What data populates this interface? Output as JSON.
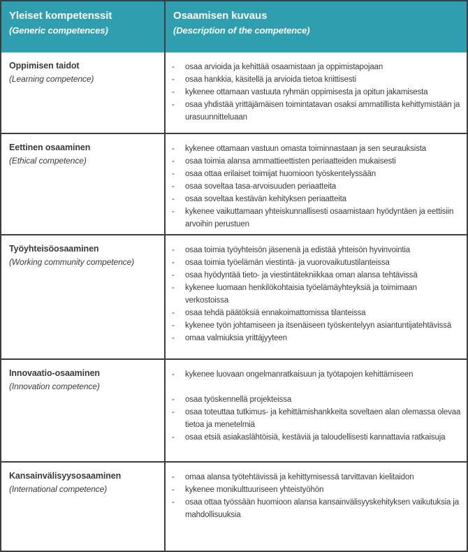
{
  "colors": {
    "header_bg": "#2f9fb0",
    "border": "#3d3d3d",
    "body_text": "#3a3a3a",
    "header_text": "#ffffff"
  },
  "table": {
    "header": {
      "col1_title": "Yleiset kompetenssit",
      "col1_subtitle": "(Generic competences)",
      "col2_title": "Osaamisen kuvaus",
      "col2_subtitle": "(Description of the competence)"
    },
    "rows": [
      {
        "name": "Oppimisen taidot",
        "name_en": "(Learning competence)",
        "items": [
          "osaa arvioida ja kehittää osaamistaan ja oppimistapojaan",
          "osaa hankkia, käsitellä ja arvioida tietoa kriittisesti",
          "kykenee ottamaan vastuuta ryhmän oppimisesta ja opitun jakamisesta",
          "osaa yhdistää yrittäjämäisen toimintatavan osaksi ammatillista kehittymistään ja urasuunnitteluaan"
        ],
        "gaps": []
      },
      {
        "name": "Eettinen osaaminen",
        "name_en": "(Ethical competence)",
        "items": [
          "kykenee ottamaan vastuun omasta toiminnastaan ja sen seurauksista",
          "osaa toimia alansa ammattieettisten periaatteiden mukaisesti",
          "osaa ottaa erilaiset toimijat huomioon työskentelyssään",
          "osaa soveltaa tasa-arvoisuuden periaatteita",
          "osaa soveltaa kestävän kehityksen periaatteita",
          "kykenee vaikuttamaan yhteiskunnallisesti osaamistaan hyödyntäen ja eettisiin arvoihin perustuen"
        ],
        "gaps": []
      },
      {
        "name": "Työyhteisöosaaminen",
        "name_en": "(Working community competence)",
        "items": [
          "osaa toimia työyhteisön jäsenenä ja edistää yhteisön hyvinvointia",
          "osaa toimia työelämän viestintä- ja vuorovaikutustilanteissa",
          "osaa hyödyntää tieto- ja viestintätekniikkaa oman alansa tehtävissä",
          "kykenee luomaan henkilökohtaisia työelämäyhteyksiä ja toimimaan verkostoissa",
          "osaa tehdä päätöksiä ennakoimattomissa tilanteissa",
          "kykenee työn johtamiseen ja itsenäiseen työskentelyyn asiantuntijatehtävissä",
          "omaa valmiuksia yrittäjyyteen"
        ],
        "gaps": []
      },
      {
        "name": "Innovaatio-osaaminen",
        "name_en": "(Innovation competence)",
        "items": [
          "kykenee luovaan ongelmanratkaisuun ja työtapojen kehittämiseen",
          "osaa työskennellä projekteissa",
          "osaa toteuttaa tutkimus- ja kehittämishankkeita soveltaen alan olemassa olevaa tietoa ja menetelmiä",
          "osaa etsiä asiakaslähtöisiä, kestäviä ja taloudellisesti kannattavia ratkaisuja"
        ],
        "gaps": [
          0
        ]
      },
      {
        "name": "Kansainvälisyysosaaminen",
        "name_en": "(International competence)",
        "items": [
          "omaa alansa työtehtävissä ja kehittymisessä tarvittavan kielitaidon",
          "kykenee monikulttuuriseen yhteistyöhön",
          "osaa ottaa työssään huomioon alansa kansainvälisyyskehityksen vaikutuksia ja mahdollisuuksia"
        ],
        "gaps": []
      }
    ]
  }
}
